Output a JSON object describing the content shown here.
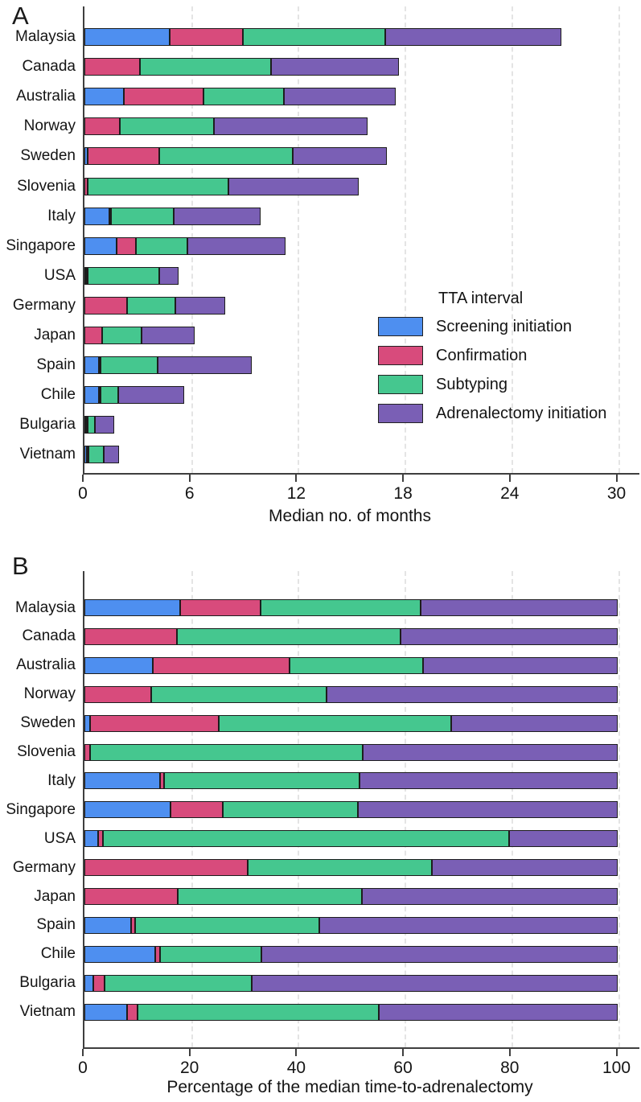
{
  "figure": {
    "panel_a_letter": "A",
    "panel_b_letter": "B"
  },
  "legend": {
    "title": "TTA interval",
    "items": [
      {
        "label": "Screening initiation",
        "color": "#4E8FF0"
      },
      {
        "label": "Confirmation",
        "color": "#D84B7C"
      },
      {
        "label": "Subtyping",
        "color": "#45C78F"
      },
      {
        "label": "Adrenalectomy initiation",
        "color": "#7A5FB5"
      }
    ]
  },
  "countries": [
    "Malaysia",
    "Canada",
    "Australia",
    "Norway",
    "Sweden",
    "Slovenia",
    "Italy",
    "Singapore",
    "USA",
    "Germany",
    "Japan",
    "Spain",
    "Chile",
    "Bulgaria",
    "Vietnam"
  ],
  "chart_data": [
    {
      "type": "bar",
      "orientation": "horizontal",
      "stacked": true,
      "panel": "A",
      "xlabel": "Median no. of months",
      "xlim": [
        0,
        31
      ],
      "ticks": [
        0,
        6,
        12,
        18,
        24,
        30
      ],
      "grid": "dashed-vertical",
      "legend_position": "right-middle",
      "categories": [
        "Malaysia",
        "Canada",
        "Australia",
        "Norway",
        "Sweden",
        "Slovenia",
        "Italy",
        "Singapore",
        "USA",
        "Germany",
        "Japan",
        "Spain",
        "Chile",
        "Bulgaria",
        "Vietnam"
      ],
      "series": [
        {
          "name": "Screening initiation",
          "values": [
            4.8,
            0,
            2.2,
            0,
            0.2,
            0,
            1.4,
            1.8,
            0.1,
            0,
            0,
            0.8,
            0.8,
            0.05,
            0.15
          ]
        },
        {
          "name": "Confirmation",
          "values": [
            4.1,
            3.1,
            4.5,
            2.0,
            4.0,
            0.2,
            0.1,
            1.1,
            0.1,
            2.4,
            1.0,
            0.1,
            0.1,
            0.05,
            0.05
          ]
        },
        {
          "name": "Subtyping",
          "values": [
            8.0,
            7.4,
            4.5,
            5.3,
            7.5,
            7.9,
            3.5,
            2.9,
            4.0,
            2.7,
            2.2,
            3.2,
            1.0,
            0.4,
            0.85
          ]
        },
        {
          "name": "Adrenalectomy initiation",
          "values": [
            9.9,
            7.2,
            6.3,
            8.6,
            5.3,
            7.3,
            4.9,
            5.5,
            1.1,
            2.8,
            3.0,
            5.3,
            3.7,
            1.1,
            0.85
          ]
        }
      ],
      "totals": [
        26.8,
        17.7,
        17.5,
        15.9,
        17.0,
        15.4,
        9.9,
        11.3,
        5.3,
        7.9,
        6.2,
        9.4,
        5.6,
        1.6,
        1.9
      ]
    },
    {
      "type": "bar",
      "orientation": "horizontal",
      "stacked": true,
      "panel": "B",
      "xlabel": "Percentage of the median time-to-adrenalectomy",
      "xlim": [
        0,
        100
      ],
      "ticks": [
        0,
        20,
        40,
        60,
        80,
        100
      ],
      "grid": "dashed-vertical",
      "categories": [
        "Malaysia",
        "Canada",
        "Australia",
        "Norway",
        "Sweden",
        "Slovenia",
        "Italy",
        "Singapore",
        "USA",
        "Germany",
        "Japan",
        "Spain",
        "Chile",
        "Bulgaria",
        "Vietnam"
      ],
      "series": [
        {
          "name": "Screening initiation",
          "values": [
            18,
            0,
            12.8,
            0,
            1,
            0,
            14.1,
            16.1,
            2.5,
            0,
            0,
            8.7,
            13.3,
            1.7,
            8
          ]
        },
        {
          "name": "Confirmation",
          "values": [
            15,
            17.3,
            25.6,
            12.5,
            24.1,
            1,
            0.8,
            9.8,
            1,
            30.6,
            17.5,
            0.8,
            0.8,
            2.1,
            2
          ]
        },
        {
          "name": "Subtyping",
          "values": [
            30,
            42,
            25,
            32.9,
            43.6,
            51.2,
            36.7,
            25.4,
            76.1,
            34.5,
            34.5,
            34.5,
            19,
            27.6,
            45.1
          ]
        },
        {
          "name": "Adrenalectomy initiation",
          "values": [
            37,
            40.7,
            36.6,
            54.6,
            31.3,
            47.8,
            48.4,
            48.7,
            20.4,
            34.9,
            48,
            56,
            66.9,
            68.6,
            44.9
          ]
        }
      ]
    }
  ]
}
